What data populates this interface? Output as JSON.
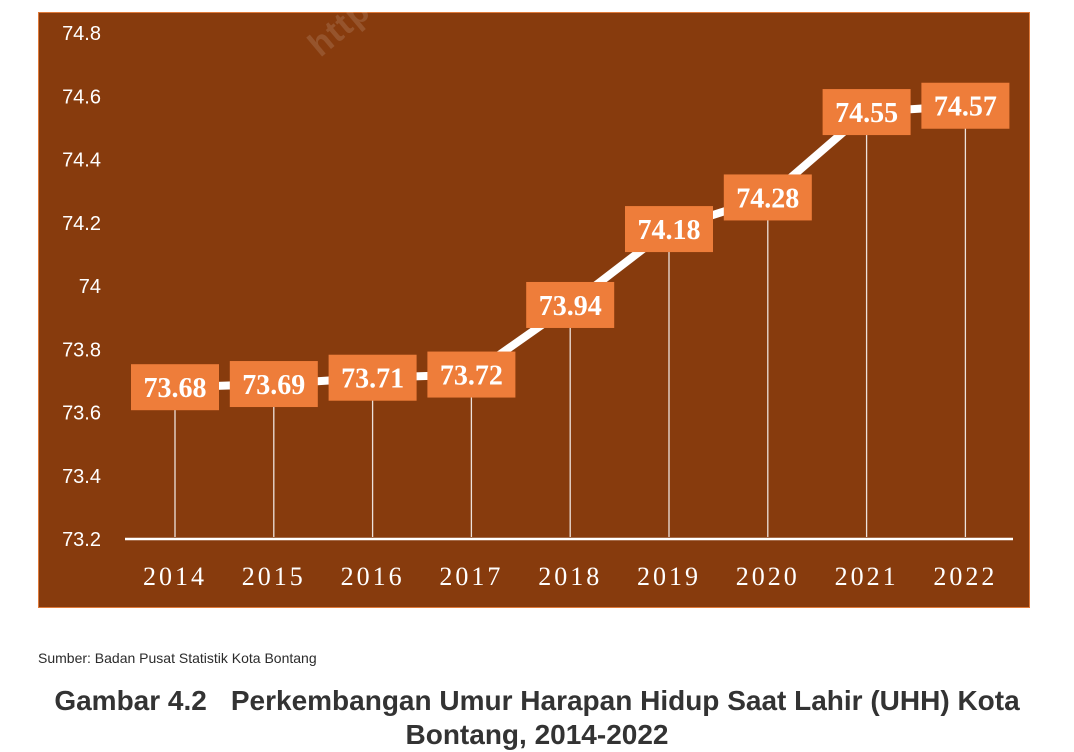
{
  "watermark": "https://",
  "source": "Sumber: Badan Pusat Statistik Kota Bontang",
  "caption": {
    "number": "Gambar 4.2",
    "text": "Perkembangan Umur Harapan Hidup Saat Lahir (UHH) Kota Bontang, 2014-2022"
  },
  "colors": {
    "panel": "#873b0d",
    "label_box": "#ee7d3a",
    "line": "#ffffff"
  },
  "chart_data": {
    "type": "line",
    "title": "",
    "xlabel": "",
    "ylabel": "",
    "categories": [
      "2014",
      "2015",
      "2016",
      "2017",
      "2018",
      "2019",
      "2020",
      "2021",
      "2022"
    ],
    "series": [
      {
        "values": [
          73.68,
          73.69,
          73.71,
          73.72,
          73.94,
          74.18,
          74.28,
          74.55,
          74.57
        ]
      }
    ],
    "data_labels": [
      "73.68",
      "73.69",
      "73.71",
      "73.72",
      "73.94",
      "74.18",
      "74.28",
      "74.55",
      "74.57"
    ],
    "ylim": [
      73.2,
      74.8
    ],
    "yticks": [
      "73.2",
      "73.4",
      "73.6",
      "73.8",
      "74",
      "74.2",
      "74.4",
      "74.6",
      "74.8"
    ],
    "grid": false,
    "legend": "none"
  }
}
